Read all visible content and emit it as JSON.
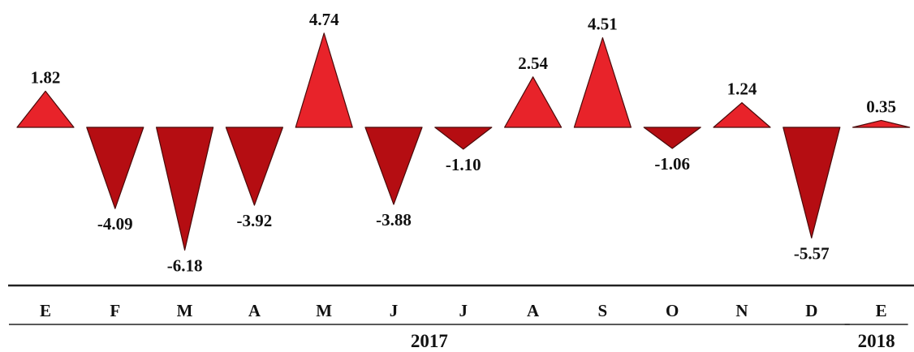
{
  "chart_data": {
    "type": "bar",
    "categories": [
      "E",
      "F",
      "M",
      "A",
      "M",
      "J",
      "J",
      "A",
      "S",
      "O",
      "N",
      "D",
      "E"
    ],
    "values": [
      1.82,
      -4.09,
      -6.18,
      -3.92,
      4.74,
      -3.88,
      -1.1,
      2.54,
      4.51,
      -1.06,
      1.24,
      -5.57,
      0.35
    ],
    "value_labels": [
      "1.82",
      "-4.09",
      "-6.18",
      "-3.92",
      "4.74",
      "-3.88",
      "-1.10",
      "2.54",
      "4.51",
      "-1.06",
      "1.24",
      "-5.57",
      "0.35"
    ],
    "groups": [
      {
        "label": "2017",
        "span": [
          0,
          11
        ]
      },
      {
        "label": "2018",
        "span": [
          12,
          12
        ]
      }
    ],
    "title": "",
    "xlabel": "",
    "ylabel": "",
    "grid": false,
    "legend": "none",
    "colors": {
      "positive": "#e8232a",
      "negative": "#b50d12",
      "outline": "#4a0a0a",
      "baseline": "#222222"
    }
  }
}
